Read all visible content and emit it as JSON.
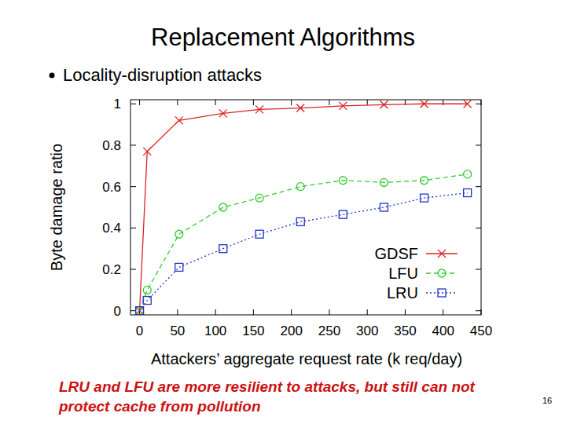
{
  "chart_data": {
    "type": "line",
    "title": "Replacement Algorithms",
    "subtitle": "Locality-disruption attacks",
    "x_label": "Attackers’ aggregate request rate (k req/day)",
    "y_label": "Byte damage ratio",
    "annotations": [
      "LRU and LFU are more resilient to attacks, but still can not protect cache from pollution",
      "16"
    ],
    "x": [
      0,
      10,
      52,
      110,
      158,
      212,
      268,
      322,
      375,
      432
    ],
    "series": [
      {
        "name": "GDSF",
        "color": "#dd2222",
        "marker": "x",
        "line_style": "solid",
        "values": [
          0,
          0.77,
          0.92,
          0.954,
          0.973,
          0.98,
          0.99,
          0.996,
          1.0,
          1.0
        ]
      },
      {
        "name": "LFU",
        "color": "#33cc33",
        "marker": "circle",
        "line_style": "dashed",
        "values": [
          0,
          0.1,
          0.37,
          0.5,
          0.545,
          0.6,
          0.63,
          0.62,
          0.63,
          0.66
        ]
      },
      {
        "name": "LRU",
        "color": "#2233cc",
        "marker": "square",
        "line_style": "dotted",
        "values": [
          0,
          0.05,
          0.21,
          0.3,
          0.37,
          0.43,
          0.465,
          0.5,
          0.545,
          0.57
        ]
      }
    ],
    "xlim": [
      -12,
      450
    ],
    "ylim": [
      -0.02,
      1.02
    ],
    "xticks": [
      0,
      50,
      100,
      150,
      200,
      250,
      300,
      350,
      400,
      450
    ],
    "yticks": [
      0,
      0.2,
      0.4,
      0.6,
      0.8,
      1
    ],
    "grid": false,
    "legend": "lower right"
  }
}
